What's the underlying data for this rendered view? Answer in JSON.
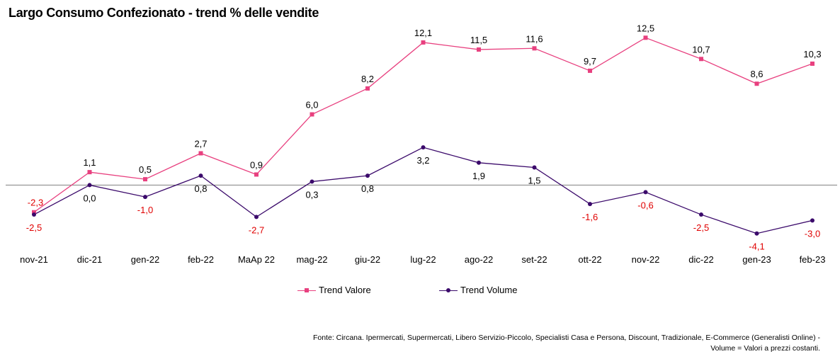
{
  "title": "Largo Consumo Confezionato  - trend % delle vendite",
  "source_note": "Fonte: Circana. Ipermercati, Supermercati, Libero Servizio-Piccolo,  Specialisti Casa e Persona, Discount, Tradizionale, E-Commerce (Generalisti Online) -  Volume =  Valori a prezzi costanti.",
  "colors": {
    "valore": "#e8407f",
    "volume": "#3b0a6b",
    "negative_label": "#e00000",
    "positive_label": "#000000",
    "zero_line": "#7f7f7f"
  },
  "chart_data": {
    "type": "line",
    "title": "Largo Consumo Confezionato  - trend % delle vendite",
    "categories": [
      "nov-21",
      "dic-21",
      "gen-22",
      "feb-22",
      "MaAp 22",
      "mag-22",
      "giu-22",
      "lug-22",
      "ago-22",
      "set-22",
      "ott-22",
      "nov-22",
      "dic-22",
      "gen-23",
      "feb-23"
    ],
    "series": [
      {
        "name": "Trend Valore",
        "values": [
          -2.3,
          1.1,
          0.5,
          2.7,
          0.9,
          6.0,
          8.2,
          12.1,
          11.5,
          11.6,
          9.7,
          12.5,
          10.7,
          8.6,
          10.3
        ],
        "labels": [
          "-2,3",
          "1,1",
          "0,5",
          "2,7",
          "0,9",
          "6,0",
          "8,2",
          "12,1",
          "11,5",
          "11,6",
          "9,7",
          "12,5",
          "10,7",
          "8,6",
          "10,3"
        ],
        "color": "#e8407f",
        "marker": "square"
      },
      {
        "name": "Trend Volume",
        "values": [
          -2.5,
          0.0,
          -1.0,
          0.8,
          -2.7,
          0.3,
          0.8,
          3.2,
          1.9,
          1.5,
          -1.6,
          -0.6,
          -2.5,
          -4.1,
          -3.0
        ],
        "labels": [
          "-2,5",
          "0,0",
          "-1,0",
          "0,8",
          "-2,7",
          "0,3",
          "0,8",
          "3,2",
          "1,9",
          "1,5",
          "-1,6",
          "-0,6",
          "-2,5",
          "-4,1",
          "-3,0"
        ],
        "color": "#3b0a6b",
        "marker": "circle"
      }
    ],
    "ylim": [
      -6.4,
      14.5
    ],
    "xlabel": "",
    "ylabel": "",
    "grid": false,
    "legend": "bottom",
    "zero_line": true
  }
}
